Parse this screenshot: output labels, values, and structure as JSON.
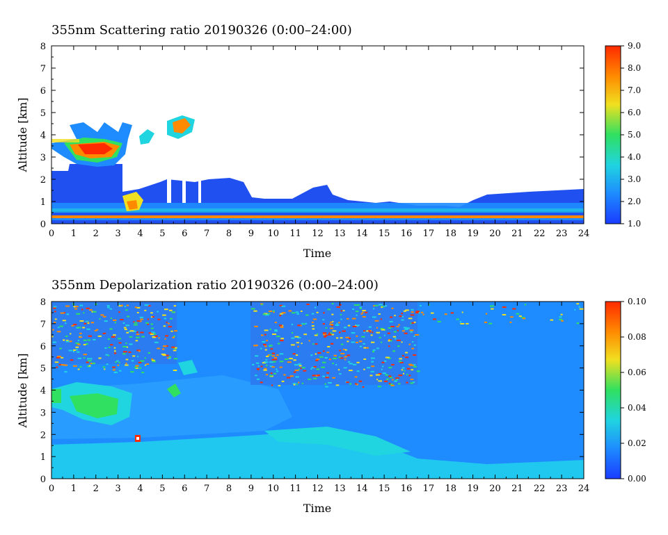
{
  "chart_data": [
    {
      "type": "heatmap",
      "title": "355nm Scattering ratio  20190326 (0:00–24:00)",
      "xlabel": "Time",
      "ylabel": "Altitude [km]",
      "xlim": [
        0,
        24
      ],
      "ylim": [
        0,
        8
      ],
      "x_ticks": [
        "0",
        "1",
        "2",
        "3",
        "4",
        "5",
        "6",
        "7",
        "8",
        "9",
        "10",
        "11",
        "12",
        "13",
        "14",
        "15",
        "16",
        "17",
        "18",
        "19",
        "20",
        "21",
        "22",
        "23",
        "24"
      ],
      "y_ticks": [
        "0",
        "1",
        "2",
        "3",
        "4",
        "5",
        "6",
        "7",
        "8"
      ],
      "colorbar": {
        "min": 1.0,
        "max": 9.0,
        "ticks": [
          "1.0",
          "2.0",
          "3.0",
          "4.0",
          "5.0",
          "6.0",
          "7.0",
          "8.0",
          "9.0"
        ]
      },
      "colormap": [
        "#1a3cff",
        "#1e8cff",
        "#20d4e0",
        "#30e060",
        "#f0e020",
        "#ff8a00",
        "#ff2a00"
      ],
      "features": [
        {
          "name": "boundary layer",
          "x": [
            0,
            24
          ],
          "y_top": [
            2.3,
            1.5
          ],
          "approx_value": 2.0
        },
        {
          "name": "mid-level cloud",
          "x": [
            0.9,
            3.8
          ],
          "y": [
            3.0,
            4.4
          ],
          "approx_value": 8.0
        },
        {
          "name": "cloud patch",
          "x": [
            5.2,
            6.6
          ],
          "y": [
            4.2,
            5.2
          ],
          "approx_value": 7.0
        }
      ]
    },
    {
      "type": "heatmap",
      "title": "355nm Depolarization ratio  20190326 (0:00–24:00)",
      "xlabel": "Time",
      "ylabel": "Altitude [km]",
      "xlim": [
        0,
        24
      ],
      "ylim": [
        0,
        8
      ],
      "x_ticks": [
        "0",
        "1",
        "2",
        "3",
        "4",
        "5",
        "6",
        "7",
        "8",
        "9",
        "10",
        "11",
        "12",
        "13",
        "14",
        "15",
        "16",
        "17",
        "18",
        "19",
        "20",
        "21",
        "22",
        "23",
        "24"
      ],
      "y_ticks": [
        "0",
        "1",
        "2",
        "3",
        "4",
        "5",
        "6",
        "7",
        "8"
      ],
      "colorbar": {
        "min": 0.0,
        "max": 0.1,
        "ticks": [
          "0.00",
          "0.02",
          "0.04",
          "0.06",
          "0.08",
          "0.10"
        ]
      },
      "colormap": [
        "#1a3cff",
        "#1e8cff",
        "#20d4e0",
        "#30e060",
        "#f0e020",
        "#ff8a00",
        "#ff2a00"
      ],
      "features": [
        {
          "name": "background",
          "approx_value": 0.015
        },
        {
          "name": "noisy upper layer",
          "x": [
            9,
            16
          ],
          "y": [
            4.5,
            8
          ],
          "approx_value": 0.05
        },
        {
          "name": "ice cloud",
          "x": [
            0,
            4
          ],
          "y": [
            2.5,
            4.5
          ],
          "approx_value": 0.04
        }
      ]
    }
  ]
}
